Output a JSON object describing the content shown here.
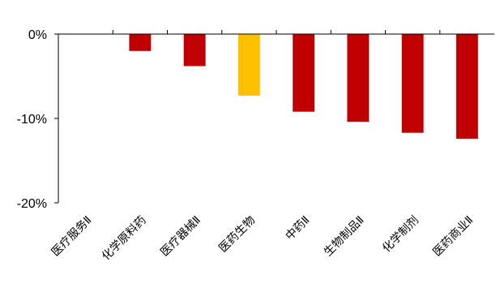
{
  "chart_data": {
    "type": "bar",
    "title": "",
    "xlabel": "",
    "ylabel": "",
    "ylim": [
      -20,
      0
    ],
    "yticks": [
      0,
      -10,
      -20
    ],
    "ytick_labels": [
      "0%",
      "-10%",
      "-20%"
    ],
    "categories": [
      "医疗服务Ⅱ",
      "化学原料药",
      "医疗器械Ⅱ",
      "医药生物",
      "中药Ⅱ",
      "生物制品Ⅱ",
      "化学制剂",
      "医药商业Ⅱ"
    ],
    "values": [
      0,
      -2.0,
      -3.8,
      -7.3,
      -9.2,
      -10.4,
      -11.7,
      -12.4
    ],
    "colors": [
      "#C00000",
      "#C00000",
      "#C00000",
      "#FFC000",
      "#C00000",
      "#C00000",
      "#C00000",
      "#C00000"
    ],
    "grid": false,
    "legend": "none"
  }
}
